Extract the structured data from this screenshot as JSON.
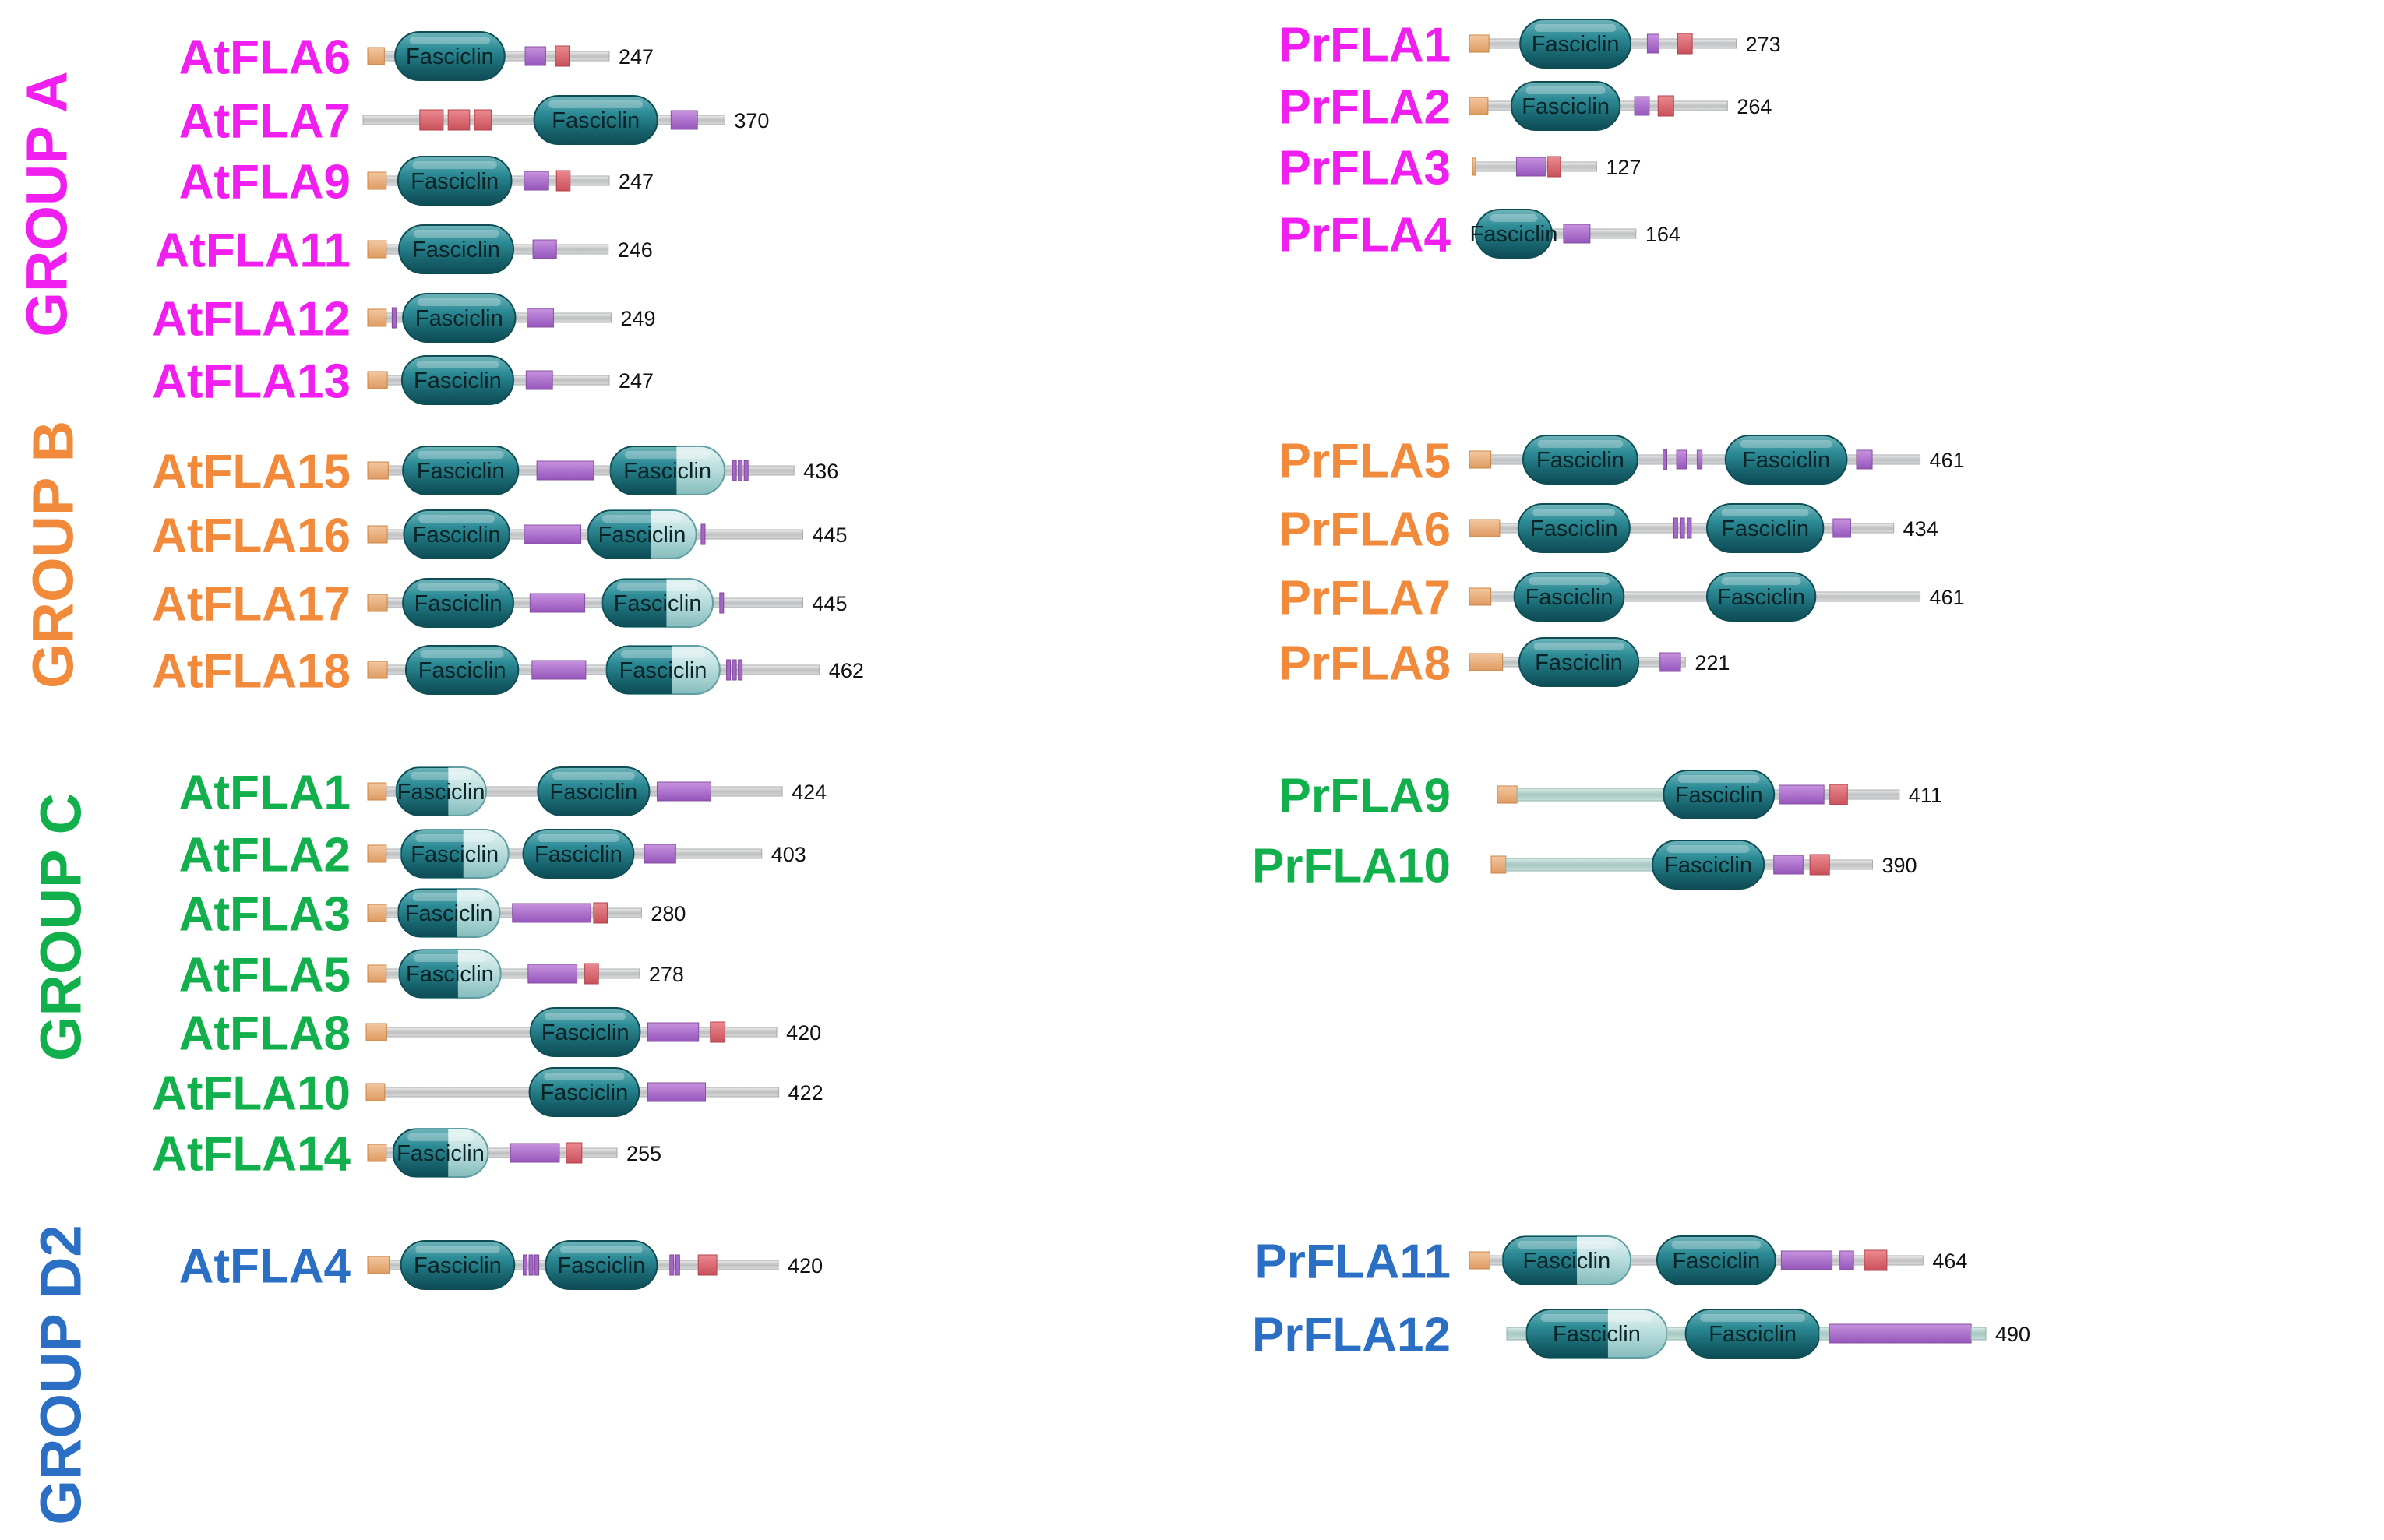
{
  "colors": {
    "groupA": "#f01ff0",
    "groupB": "#f28a3c",
    "groupC": "#12b04c",
    "groupD2": "#2a6fc4",
    "line": "#c4c6c8",
    "linker": "#a6c7c2",
    "signal": "#e8a772",
    "purple": "#a667c9",
    "red": "#d9636a",
    "domain": "#2a8590",
    "domainLight": "#a9d7d8"
  },
  "groups": [
    {
      "id": "A",
      "label": "GROUP A",
      "color_key": "groupA"
    },
    {
      "id": "B",
      "label": "GROUP B",
      "color_key": "groupB"
    },
    {
      "id": "C",
      "label": "GROUP C",
      "color_key": "groupC"
    },
    {
      "id": "D2",
      "label": "GROUP D2",
      "color_key": "groupD2"
    }
  ],
  "domain_label": "Fasciclin",
  "proteins": [
    {
      "name": "AtFLA6",
      "group": "A",
      "length": 247,
      "features": [
        {
          "type": "signal",
          "start": 0,
          "end": 17
        },
        {
          "type": "fasciclin",
          "start": 28,
          "end": 140
        },
        {
          "type": "purple",
          "start": 161,
          "end": 182
        },
        {
          "type": "red",
          "start": 192,
          "end": 206
        }
      ]
    },
    {
      "name": "AtFLA7",
      "group": "A",
      "length": 370,
      "features": [
        {
          "type": "red",
          "start": 58,
          "end": 82
        },
        {
          "type": "red",
          "start": 87,
          "end": 109
        },
        {
          "type": "red",
          "start": 114,
          "end": 131
        },
        {
          "type": "fasciclin",
          "start": 175,
          "end": 301
        },
        {
          "type": "purple",
          "start": 315,
          "end": 342
        }
      ]
    },
    {
      "name": "AtFLA9",
      "group": "A",
      "length": 247,
      "features": [
        {
          "type": "signal",
          "start": 0,
          "end": 19
        },
        {
          "type": "fasciclin",
          "start": 31,
          "end": 147
        },
        {
          "type": "purple",
          "start": 160,
          "end": 185
        },
        {
          "type": "red",
          "start": 193,
          "end": 207
        }
      ]
    },
    {
      "name": "AtFLA11",
      "group": "A",
      "length": 246,
      "features": [
        {
          "type": "signal",
          "start": 0,
          "end": 19
        },
        {
          "type": "fasciclin",
          "start": 32,
          "end": 149
        },
        {
          "type": "purple",
          "start": 169,
          "end": 193
        }
      ]
    },
    {
      "name": "AtFLA12",
      "group": "A",
      "length": 249,
      "features": [
        {
          "type": "signal",
          "start": 0,
          "end": 19
        },
        {
          "type": "purple_tick",
          "start": 25,
          "end": 27
        },
        {
          "type": "fasciclin",
          "start": 36,
          "end": 151
        },
        {
          "type": "purple",
          "start": 163,
          "end": 190
        }
      ]
    },
    {
      "name": "AtFLA13",
      "group": "A",
      "length": 247,
      "features": [
        {
          "type": "signal",
          "start": 0,
          "end": 20
        },
        {
          "type": "fasciclin",
          "start": 35,
          "end": 149
        },
        {
          "type": "purple",
          "start": 162,
          "end": 189
        }
      ]
    },
    {
      "name": "AtFLA15",
      "group": "B",
      "length": 436,
      "features": [
        {
          "type": "signal",
          "start": 0,
          "end": 21
        },
        {
          "type": "fasciclin",
          "start": 36,
          "end": 154
        },
        {
          "type": "purple",
          "start": 173,
          "end": 231
        },
        {
          "type": "fasciclin_half",
          "start": 248,
          "end": 365
        },
        {
          "type": "purple_tick",
          "start": 373,
          "end": 375
        },
        {
          "type": "purple_tick",
          "start": 379,
          "end": 381
        },
        {
          "type": "purple_tick",
          "start": 385,
          "end": 387
        }
      ]
    },
    {
      "name": "AtFLA16",
      "group": "B",
      "length": 445,
      "features": [
        {
          "type": "signal",
          "start": 0,
          "end": 20
        },
        {
          "type": "fasciclin",
          "start": 37,
          "end": 145
        },
        {
          "type": "purple",
          "start": 160,
          "end": 218
        },
        {
          "type": "fasciclin_half",
          "start": 225,
          "end": 336
        },
        {
          "type": "purple_tick",
          "start": 341,
          "end": 343
        }
      ]
    },
    {
      "name": "AtFLA17",
      "group": "B",
      "length": 445,
      "features": [
        {
          "type": "signal",
          "start": 0,
          "end": 20
        },
        {
          "type": "fasciclin",
          "start": 36,
          "end": 149
        },
        {
          "type": "purple",
          "start": 166,
          "end": 222
        },
        {
          "type": "fasciclin_half",
          "start": 240,
          "end": 353
        },
        {
          "type": "purple_tick",
          "start": 360,
          "end": 362
        }
      ]
    },
    {
      "name": "AtFLA18",
      "group": "B",
      "length": 462,
      "features": [
        {
          "type": "signal",
          "start": 0,
          "end": 20
        },
        {
          "type": "fasciclin",
          "start": 39,
          "end": 154
        },
        {
          "type": "purple",
          "start": 168,
          "end": 223
        },
        {
          "type": "fasciclin_half",
          "start": 244,
          "end": 360
        },
        {
          "type": "purple_tick",
          "start": 367,
          "end": 369
        },
        {
          "type": "purple_tick",
          "start": 373,
          "end": 375
        },
        {
          "type": "purple_tick",
          "start": 379,
          "end": 381
        }
      ]
    },
    {
      "name": "AtFLA1",
      "group": "C",
      "length": 424,
      "features": [
        {
          "type": "signal",
          "start": 0,
          "end": 19
        },
        {
          "type": "fasciclin_half",
          "start": 29,
          "end": 121
        },
        {
          "type": "fasciclin",
          "start": 174,
          "end": 288
        },
        {
          "type": "purple",
          "start": 296,
          "end": 351
        }
      ]
    },
    {
      "name": "AtFLA2",
      "group": "C",
      "length": 403,
      "features": [
        {
          "type": "signal",
          "start": 0,
          "end": 19
        },
        {
          "type": "fasciclin_half",
          "start": 34,
          "end": 144
        },
        {
          "type": "fasciclin",
          "start": 159,
          "end": 272
        },
        {
          "type": "purple",
          "start": 283,
          "end": 315
        }
      ]
    },
    {
      "name": "AtFLA3",
      "group": "C",
      "length": 280,
      "features": [
        {
          "type": "signal",
          "start": 0,
          "end": 19
        },
        {
          "type": "fasciclin_half",
          "start": 31,
          "end": 135
        },
        {
          "type": "purple",
          "start": 148,
          "end": 228
        },
        {
          "type": "red",
          "start": 231,
          "end": 245
        }
      ]
    },
    {
      "name": "AtFLA5",
      "group": "C",
      "length": 278,
      "features": [
        {
          "type": "signal",
          "start": 0,
          "end": 19
        },
        {
          "type": "fasciclin_half",
          "start": 32,
          "end": 136
        },
        {
          "type": "purple",
          "start": 164,
          "end": 214
        },
        {
          "type": "red",
          "start": 222,
          "end": 236
        }
      ]
    },
    {
      "name": "AtFLA8",
      "group": "C",
      "length": 420,
      "features": [
        {
          "type": "signal",
          "start": 0,
          "end": 21
        },
        {
          "type": "fasciclin",
          "start": 168,
          "end": 280
        },
        {
          "type": "purple",
          "start": 288,
          "end": 340
        },
        {
          "type": "red",
          "start": 352,
          "end": 367
        }
      ]
    },
    {
      "name": "AtFLA10",
      "group": "C",
      "length": 422,
      "features": [
        {
          "type": "signal",
          "start": 0,
          "end": 19
        },
        {
          "type": "fasciclin",
          "start": 167,
          "end": 279
        },
        {
          "type": "purple",
          "start": 288,
          "end": 347
        }
      ]
    },
    {
      "name": "AtFLA14",
      "group": "C",
      "length": 255,
      "features": [
        {
          "type": "signal",
          "start": 0,
          "end": 19
        },
        {
          "type": "fasciclin_half",
          "start": 26,
          "end": 123
        },
        {
          "type": "purple",
          "start": 146,
          "end": 196
        },
        {
          "type": "red",
          "start": 203,
          "end": 219
        }
      ]
    },
    {
      "name": "AtFLA4",
      "group": "D2",
      "length": 420,
      "features": [
        {
          "type": "signal",
          "start": 0,
          "end": 22
        },
        {
          "type": "fasciclin",
          "start": 34,
          "end": 150
        },
        {
          "type": "purple_tick",
          "start": 159,
          "end": 161
        },
        {
          "type": "purple_tick",
          "start": 165,
          "end": 167
        },
        {
          "type": "purple_tick",
          "start": 171,
          "end": 173
        },
        {
          "type": "fasciclin",
          "start": 182,
          "end": 296
        },
        {
          "type": "purple_tick",
          "start": 309,
          "end": 311
        },
        {
          "type": "purple_tick",
          "start": 315,
          "end": 317
        },
        {
          "type": "red",
          "start": 338,
          "end": 357
        }
      ]
    },
    {
      "name": "PrFLA1",
      "group": "A",
      "length": 273,
      "features": [
        {
          "type": "signal",
          "start": 0,
          "end": 20
        },
        {
          "type": "fasciclin",
          "start": 52,
          "end": 165
        },
        {
          "type": "purple",
          "start": 182,
          "end": 194
        },
        {
          "type": "red",
          "start": 213,
          "end": 228
        }
      ]
    },
    {
      "name": "PrFLA2",
      "group": "A",
      "length": 264,
      "features": [
        {
          "type": "signal",
          "start": 0,
          "end": 19
        },
        {
          "type": "fasciclin",
          "start": 43,
          "end": 154
        },
        {
          "type": "purple",
          "start": 169,
          "end": 184
        },
        {
          "type": "red",
          "start": 193,
          "end": 209
        }
      ]
    },
    {
      "name": "PrFLA3",
      "group": "A",
      "length": 127,
      "features": [
        {
          "type": "signal",
          "start": 0,
          "end": 3
        },
        {
          "type": "purple",
          "start": 45,
          "end": 75
        },
        {
          "type": "red",
          "start": 77,
          "end": 90
        }
      ]
    },
    {
      "name": "PrFLA4",
      "group": "A",
      "length": 164,
      "features": [
        {
          "type": "fasciclin",
          "start": 0,
          "end": 78
        },
        {
          "type": "purple",
          "start": 90,
          "end": 117
        }
      ]
    },
    {
      "name": "PrFLA5",
      "group": "B",
      "length": 461,
      "features": [
        {
          "type": "signal",
          "start": 0,
          "end": 22
        },
        {
          "type": "fasciclin",
          "start": 55,
          "end": 172
        },
        {
          "type": "purple_tick",
          "start": 198,
          "end": 200
        },
        {
          "type": "purple",
          "start": 212,
          "end": 222
        },
        {
          "type": "purple",
          "start": 233,
          "end": 238
        },
        {
          "type": "fasciclin",
          "start": 262,
          "end": 386
        },
        {
          "type": "purple",
          "start": 396,
          "end": 412
        }
      ]
    },
    {
      "name": "PrFLA6",
      "group": "B",
      "length": 434,
      "features": [
        {
          "type": "signal",
          "start": 0,
          "end": 31
        },
        {
          "type": "fasciclin",
          "start": 50,
          "end": 164
        },
        {
          "type": "purple_tick",
          "start": 209,
          "end": 211
        },
        {
          "type": "purple_tick",
          "start": 216,
          "end": 218
        },
        {
          "type": "purple_tick",
          "start": 223,
          "end": 225
        },
        {
          "type": "fasciclin",
          "start": 243,
          "end": 362
        },
        {
          "type": "purple",
          "start": 372,
          "end": 390
        }
      ]
    },
    {
      "name": "PrFLA7",
      "group": "B",
      "length": 461,
      "features": [
        {
          "type": "signal",
          "start": 0,
          "end": 22
        },
        {
          "type": "fasciclin",
          "start": 46,
          "end": 158
        },
        {
          "type": "fasciclin",
          "start": 243,
          "end": 354
        }
      ]
    },
    {
      "name": "PrFLA8",
      "group": "B",
      "length": 221,
      "features": [
        {
          "type": "signal",
          "start": 0,
          "end": 34
        },
        {
          "type": "fasciclin",
          "start": 51,
          "end": 173
        },
        {
          "type": "purple",
          "start": 195,
          "end": 216
        }
      ]
    },
    {
      "name": "PrFLA9",
      "group": "C",
      "length": 411,
      "features": [
        {
          "type": "signal",
          "start": 0,
          "end": 20
        },
        {
          "type": "linker",
          "start": 20,
          "end": 170
        },
        {
          "type": "fasciclin",
          "start": 170,
          "end": 283
        },
        {
          "type": "purple",
          "start": 288,
          "end": 334
        },
        {
          "type": "red",
          "start": 340,
          "end": 358
        }
      ]
    },
    {
      "name": "PrFLA10",
      "group": "C",
      "length": 390,
      "features": [
        {
          "type": "signal",
          "start": 0,
          "end": 15
        },
        {
          "type": "linker",
          "start": 15,
          "end": 165
        },
        {
          "type": "fasciclin",
          "start": 165,
          "end": 279
        },
        {
          "type": "purple",
          "start": 289,
          "end": 319
        },
        {
          "type": "red",
          "start": 326,
          "end": 346
        }
      ]
    },
    {
      "name": "PrFLA11",
      "group": "D2",
      "length": 464,
      "features": [
        {
          "type": "signal",
          "start": 0,
          "end": 21
        },
        {
          "type": "fasciclin_half",
          "start": 34,
          "end": 165
        },
        {
          "type": "fasciclin",
          "start": 192,
          "end": 313
        },
        {
          "type": "purple",
          "start": 319,
          "end": 371
        },
        {
          "type": "purple",
          "start": 379,
          "end": 393
        },
        {
          "type": "red",
          "start": 404,
          "end": 427
        }
      ]
    },
    {
      "name": "PrFLA12",
      "group": "D2",
      "length": 490,
      "features": [
        {
          "type": "linker",
          "start": 0,
          "end": 20
        },
        {
          "type": "fasciclin_half",
          "start": 20,
          "end": 164
        },
        {
          "type": "linker",
          "start": 164,
          "end": 183
        },
        {
          "type": "fasciclin",
          "start": 183,
          "end": 320
        },
        {
          "type": "linker",
          "start": 320,
          "end": 330
        },
        {
          "type": "purple",
          "start": 330,
          "end": 475
        },
        {
          "type": "linker",
          "start": 475,
          "end": 490
        }
      ]
    }
  ]
}
